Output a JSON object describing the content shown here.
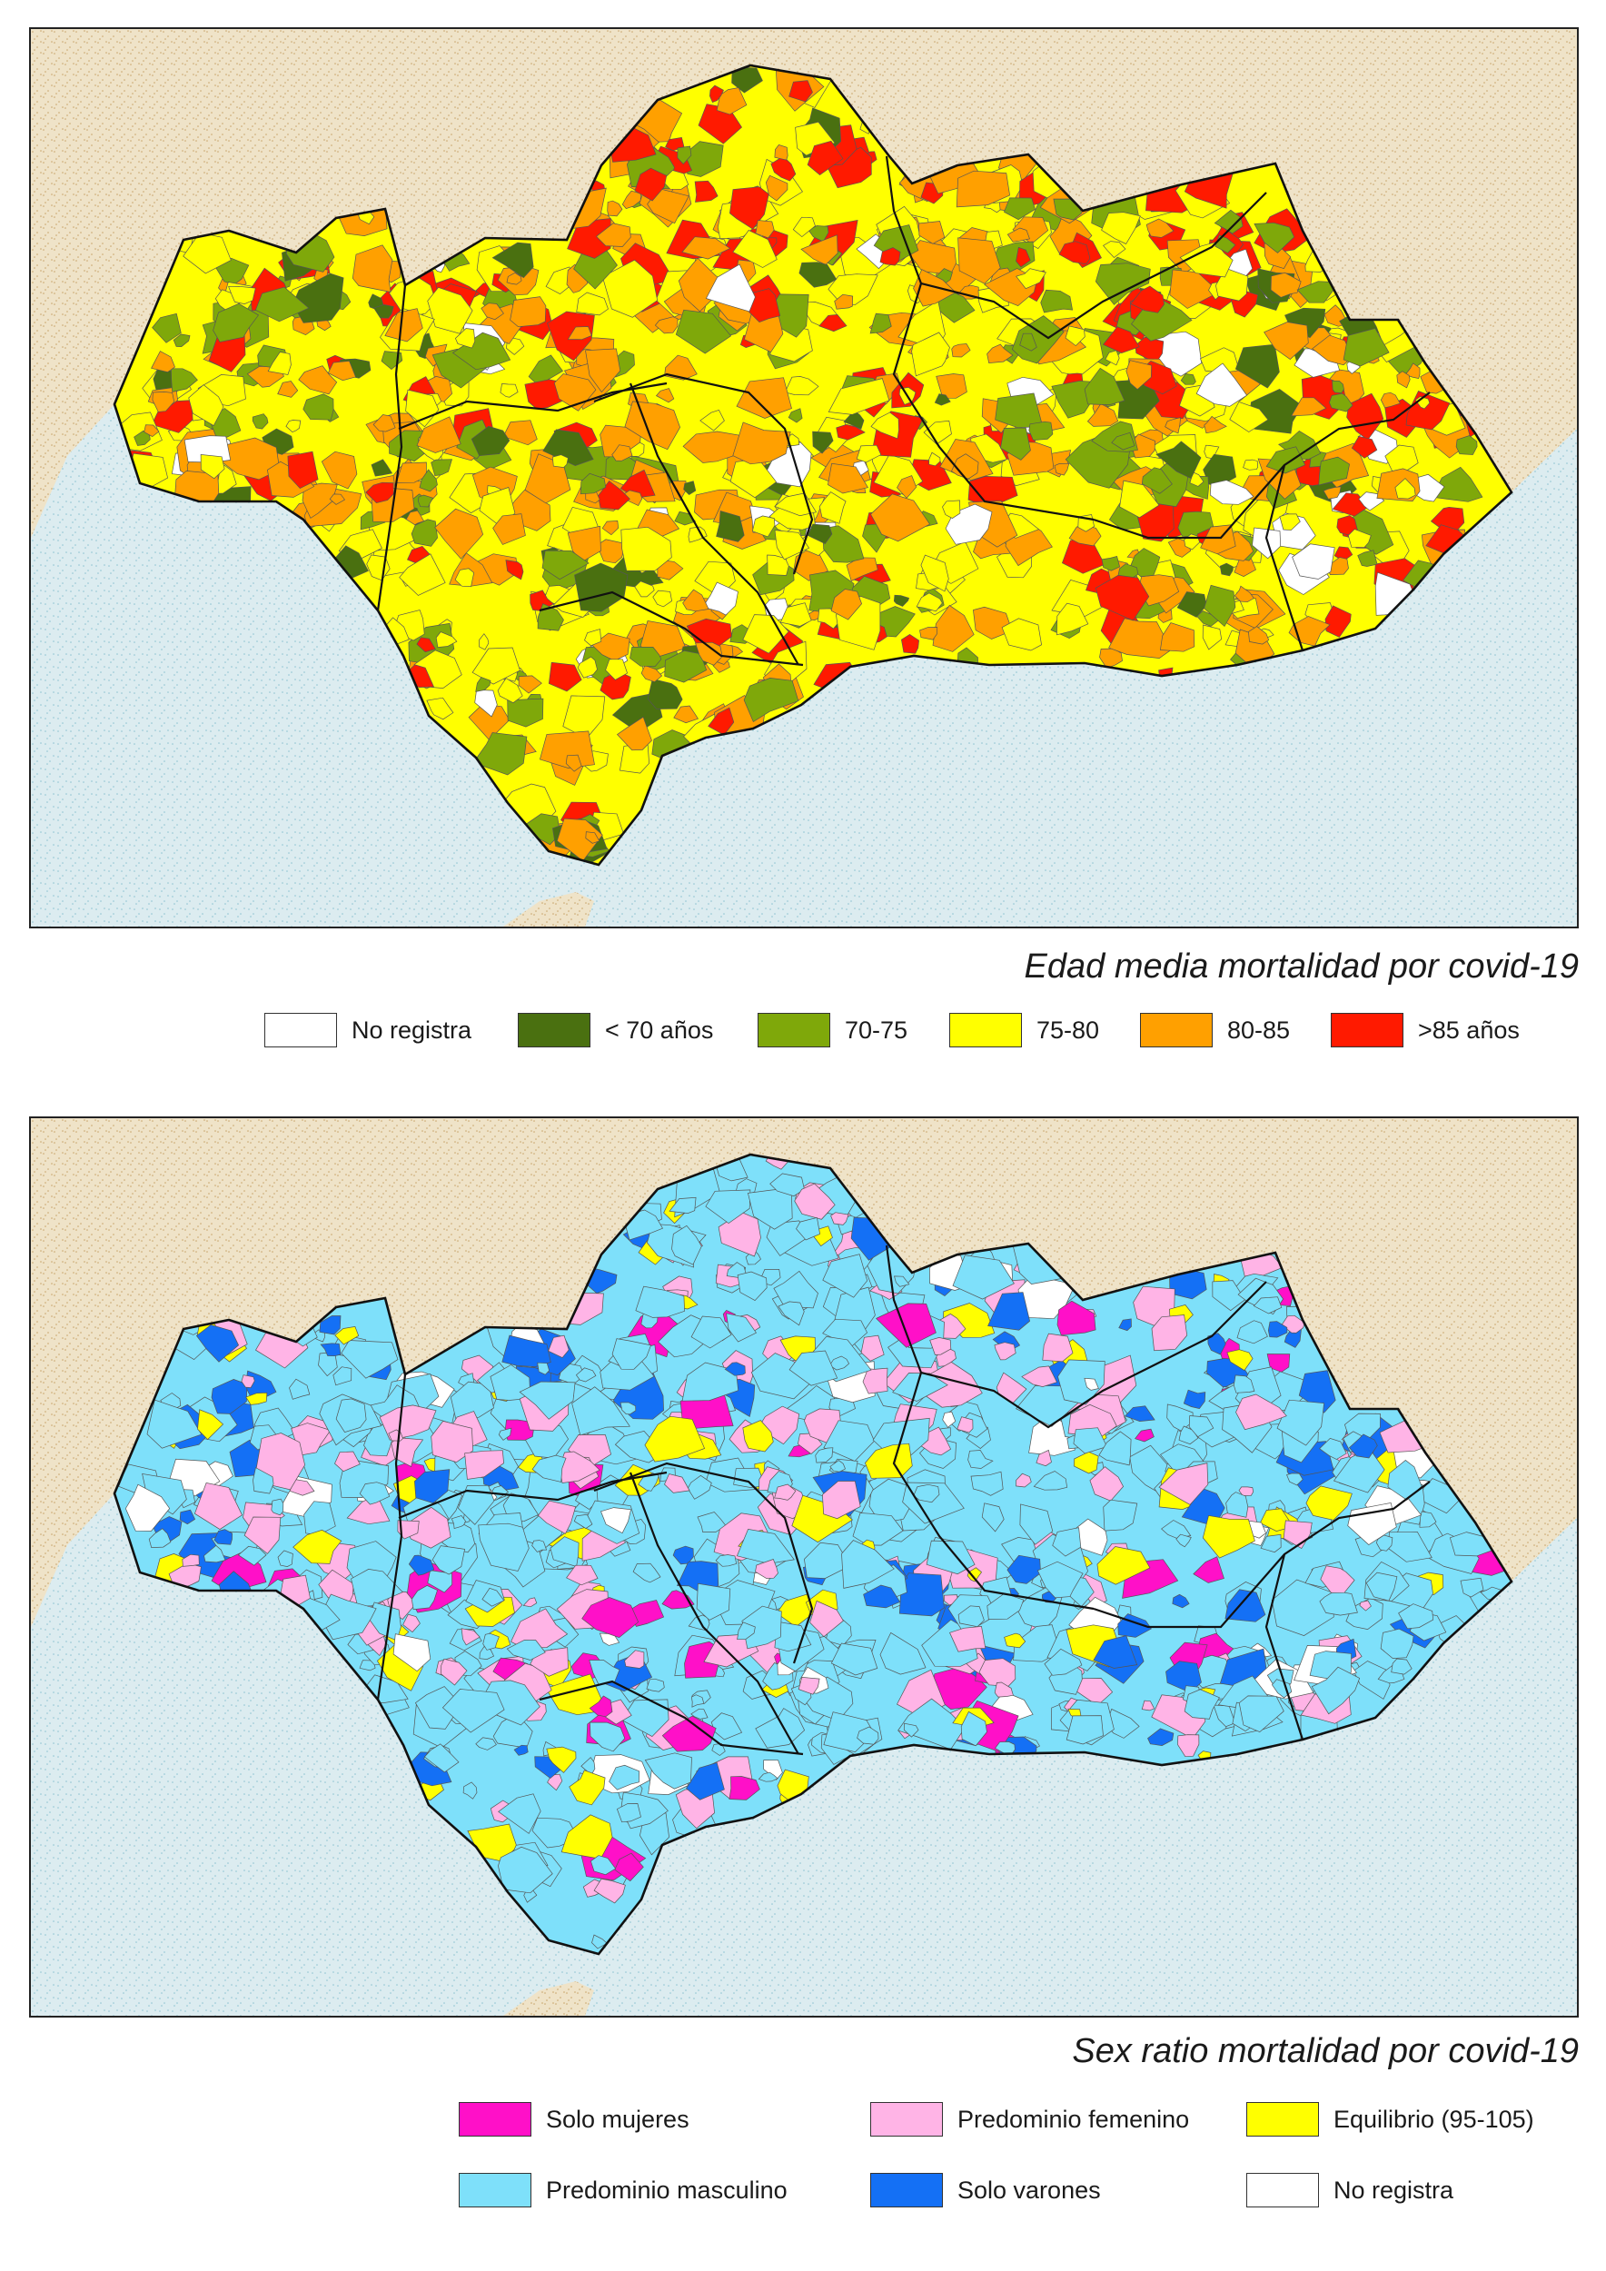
{
  "map_age": {
    "title": "Edad media mortalidad por covid-19",
    "legend": [
      {
        "label": "No registra",
        "color": "#ffffff"
      },
      {
        "label": "< 70 años",
        "color": "#4a7010"
      },
      {
        "label": "70-75",
        "color": "#7fa80a"
      },
      {
        "label": "75-80",
        "color": "#ffff00"
      },
      {
        "label": "80-85",
        "color": "#ffa000"
      },
      {
        "label": ">85 años",
        "color": "#ff1a00"
      }
    ]
  },
  "map_sex": {
    "title": "Sex ratio mortalidad por covid-19",
    "legend": [
      {
        "label": "Solo mujeres",
        "color": "#ff10c8"
      },
      {
        "label": "Predominio femenino",
        "color": "#ffb4e6"
      },
      {
        "label": "Equilibrio (95-105)",
        "color": "#ffff00"
      },
      {
        "label": "Predominio masculino",
        "color": "#7ee0fa"
      },
      {
        "label": "Solo varones",
        "color": "#1470f5"
      },
      {
        "label": "No registra",
        "color": "#ffffff"
      }
    ]
  },
  "colors": {
    "land": "#efe3c8",
    "land_dots": "#c8a46a",
    "sea": "#dcecf0",
    "sea_dots": "#8ec4d2",
    "border": "#111111"
  }
}
